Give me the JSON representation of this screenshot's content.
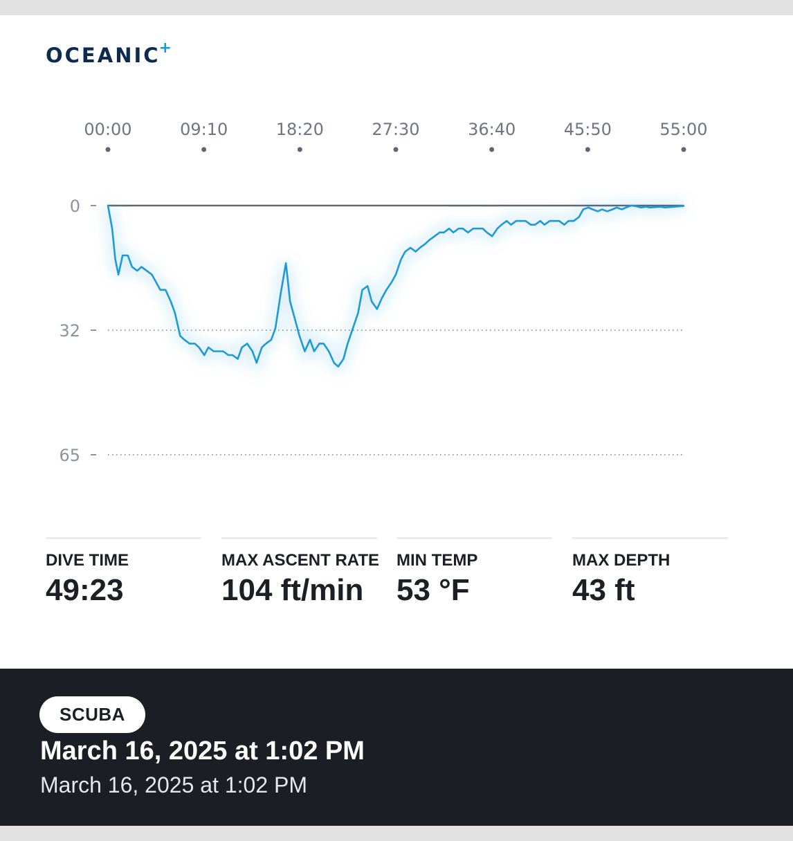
{
  "brand": {
    "name": "OCEANIC",
    "mark": "+"
  },
  "chart_data": {
    "type": "line",
    "x_ticks": [
      "00:00",
      "09:10",
      "18:20",
      "27:30",
      "36:40",
      "45:50",
      "55:00"
    ],
    "y_ticks": [
      "0",
      "32",
      "65"
    ],
    "x_unit": "minutes",
    "x_range": [
      0,
      55
    ],
    "y_range": [
      0,
      65
    ],
    "y_inverted": true,
    "series": [
      {
        "color": "#1a9ad6",
        "x": [
          0,
          0.4,
          0.7,
          1.0,
          1.4,
          1.9,
          2.3,
          2.8,
          3.2,
          3.7,
          4.2,
          4.6,
          5.0,
          5.5,
          6.0,
          6.4,
          6.9,
          7.3,
          7.8,
          8.3,
          8.7,
          9.2,
          9.6,
          10.1,
          10.5,
          11.0,
          11.5,
          11.9,
          12.4,
          12.8,
          13.3,
          13.8,
          14.2,
          14.7,
          15.1,
          15.6,
          16.0,
          16.5,
          17.0,
          17.4,
          17.9,
          18.3,
          18.8,
          19.3,
          19.7,
          20.2,
          20.6,
          21.1,
          21.6,
          22.0,
          22.5,
          22.9,
          23.4,
          23.9,
          24.3,
          24.8,
          25.2,
          25.7,
          26.2,
          26.6,
          27.1,
          27.5,
          28.0,
          28.4,
          28.9,
          29.4,
          29.8,
          30.3,
          30.7,
          31.2,
          31.7,
          32.1,
          32.6,
          33.0,
          33.5,
          33.9,
          34.4,
          34.9,
          35.3,
          35.8,
          36.2,
          36.7,
          37.2,
          37.6,
          38.1,
          38.5,
          39.0,
          39.4,
          39.9,
          40.4,
          40.8,
          41.3,
          41.7,
          42.2,
          42.7,
          43.1,
          43.6,
          44.0,
          44.5,
          45.0,
          45.4,
          45.9,
          46.3,
          46.8,
          47.2,
          47.7,
          48.2,
          48.6,
          49.1,
          49.5,
          50.0,
          50.5,
          50.9,
          51.4,
          51.8,
          52.3,
          52.8,
          53.2,
          53.7,
          54.1,
          54.6,
          55.0
        ],
        "y": [
          0,
          6,
          14,
          18,
          13,
          13,
          16,
          17,
          16,
          17,
          18,
          20,
          22,
          22,
          25,
          28,
          34,
          35,
          36,
          36,
          37,
          39,
          37,
          38,
          38,
          38,
          39,
          39,
          40,
          37,
          36,
          38,
          41,
          37,
          36,
          35,
          32,
          23,
          15,
          25,
          30,
          34,
          38,
          35,
          38,
          36,
          36,
          38,
          41,
          42,
          40,
          36,
          32,
          28,
          22,
          21,
          25,
          27,
          24,
          22,
          20,
          18,
          14,
          12,
          11,
          12,
          11,
          10,
          9,
          8,
          7,
          7,
          6,
          7,
          6,
          6,
          7,
          6,
          6,
          6,
          7,
          8,
          6,
          5,
          4,
          5,
          4,
          4,
          4,
          5,
          5,
          4,
          5,
          4,
          4,
          4,
          5,
          4,
          4,
          3,
          1,
          0.5,
          1,
          1.5,
          1,
          1.5,
          1,
          0.5,
          1,
          0.5,
          0,
          0.2,
          0.5,
          0.3,
          0.5,
          0.4,
          0.3,
          0.5,
          0.4,
          0.3,
          0.2,
          0.1
        ]
      }
    ]
  },
  "stats": [
    {
      "label": "DIVE TIME",
      "value": "49:23"
    },
    {
      "label": "MAX ASCENT RATE",
      "value": "104 ft/min"
    },
    {
      "label": "MIN TEMP",
      "value": "53 °F"
    },
    {
      "label": "MAX DEPTH",
      "value": "43 ft"
    }
  ],
  "footer": {
    "badge": "SCUBA",
    "date_main": "March 16, 2025 at 1:02 PM",
    "date_sub": "March 16, 2025 at 1:02 PM"
  }
}
